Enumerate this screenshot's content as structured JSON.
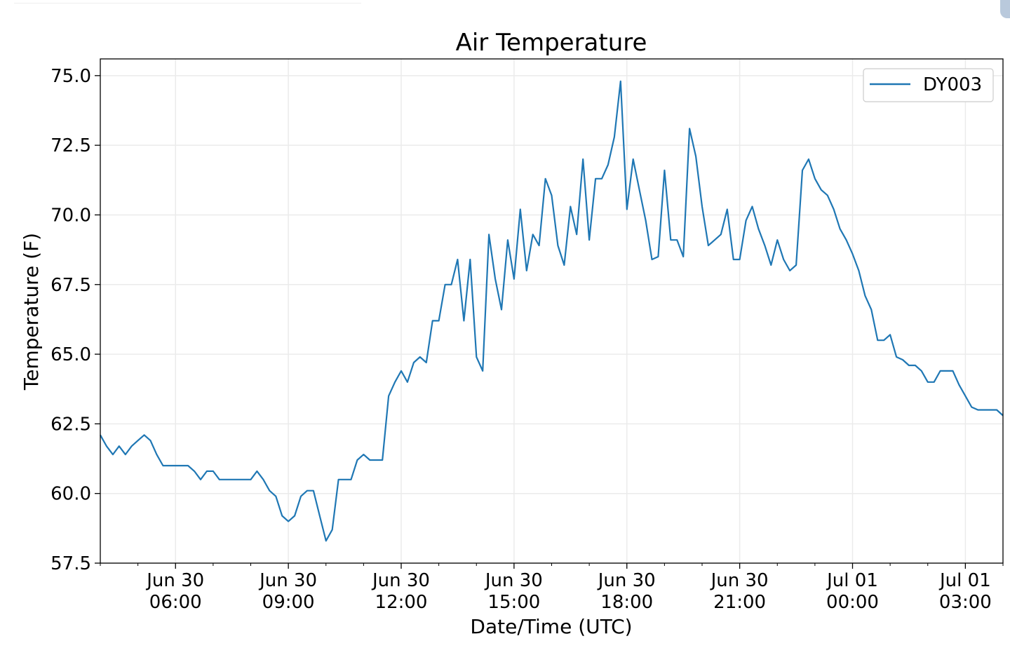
{
  "chart_data": {
    "type": "line",
    "title": "Air Temperature",
    "xlabel": "Date/Time (UTC)",
    "ylabel": "Temperature (F)",
    "x_units": "hours since Jun 30 00:00 UTC",
    "x_start_hour": 4,
    "interval_minutes": 10,
    "xlim": [
      4,
      28
    ],
    "ylim": [
      57.5,
      75.6
    ],
    "grid": true,
    "legend_position": "top-right",
    "yticks": [
      {
        "value": 57.5,
        "label": "57.5"
      },
      {
        "value": 60.0,
        "label": "60.0"
      },
      {
        "value": 62.5,
        "label": "62.5"
      },
      {
        "value": 65.0,
        "label": "65.0"
      },
      {
        "value": 67.5,
        "label": "67.5"
      },
      {
        "value": 70.0,
        "label": "70.0"
      },
      {
        "value": 72.5,
        "label": "72.5"
      },
      {
        "value": 75.0,
        "label": "75.0"
      }
    ],
    "xticks": [
      {
        "value": 6,
        "line1": "Jun 30",
        "line2": "06:00"
      },
      {
        "value": 9,
        "line1": "Jun 30",
        "line2": "09:00"
      },
      {
        "value": 12,
        "line1": "Jun 30",
        "line2": "12:00"
      },
      {
        "value": 15,
        "line1": "Jun 30",
        "line2": "15:00"
      },
      {
        "value": 18,
        "line1": "Jun 30",
        "line2": "18:00"
      },
      {
        "value": 21,
        "line1": "Jun 30",
        "line2": "21:00"
      },
      {
        "value": 24,
        "line1": "Jul 01",
        "line2": "00:00"
      },
      {
        "value": 27,
        "line1": "Jul 01",
        "line2": "03:00"
      }
    ],
    "series": [
      {
        "name": "DY003",
        "color": "#1f77b4",
        "values": [
          62.1,
          61.7,
          61.4,
          61.7,
          61.4,
          61.7,
          61.9,
          62.1,
          61.9,
          61.4,
          61.0,
          61.0,
          61.0,
          61.0,
          61.0,
          60.8,
          60.5,
          60.8,
          60.8,
          60.5,
          60.5,
          60.5,
          60.5,
          60.5,
          60.5,
          60.8,
          60.5,
          60.1,
          59.9,
          59.2,
          59.0,
          59.2,
          59.9,
          60.1,
          60.1,
          59.2,
          58.3,
          58.7,
          60.5,
          60.5,
          60.5,
          61.2,
          61.4,
          61.2,
          61.2,
          61.2,
          63.5,
          64.0,
          64.4,
          64.0,
          64.7,
          64.9,
          64.7,
          66.2,
          66.2,
          67.5,
          67.5,
          68.4,
          66.2,
          68.4,
          64.9,
          64.4,
          69.3,
          67.7,
          66.6,
          69.1,
          67.7,
          70.2,
          68.0,
          69.3,
          68.9,
          71.3,
          70.7,
          68.9,
          68.2,
          70.3,
          69.3,
          72.0,
          69.1,
          71.3,
          71.3,
          71.8,
          72.8,
          74.8,
          70.2,
          72.0,
          70.9,
          69.8,
          68.4,
          68.5,
          71.6,
          69.1,
          69.1,
          68.5,
          73.1,
          72.1,
          70.3,
          68.9,
          69.1,
          69.3,
          70.2,
          68.4,
          68.4,
          69.8,
          70.3,
          69.5,
          68.9,
          68.2,
          69.1,
          68.4,
          68.0,
          68.2,
          71.6,
          72.0,
          71.3,
          70.9,
          70.7,
          70.2,
          69.5,
          69.1,
          68.6,
          68.0,
          67.1,
          66.6,
          65.5,
          65.5,
          65.7,
          64.9,
          64.8,
          64.6,
          64.6,
          64.4,
          64.0,
          64.0,
          64.4,
          64.4,
          64.4,
          63.9,
          63.5,
          63.1,
          63.0,
          63.0,
          63.0,
          63.0,
          62.8
        ]
      }
    ]
  }
}
